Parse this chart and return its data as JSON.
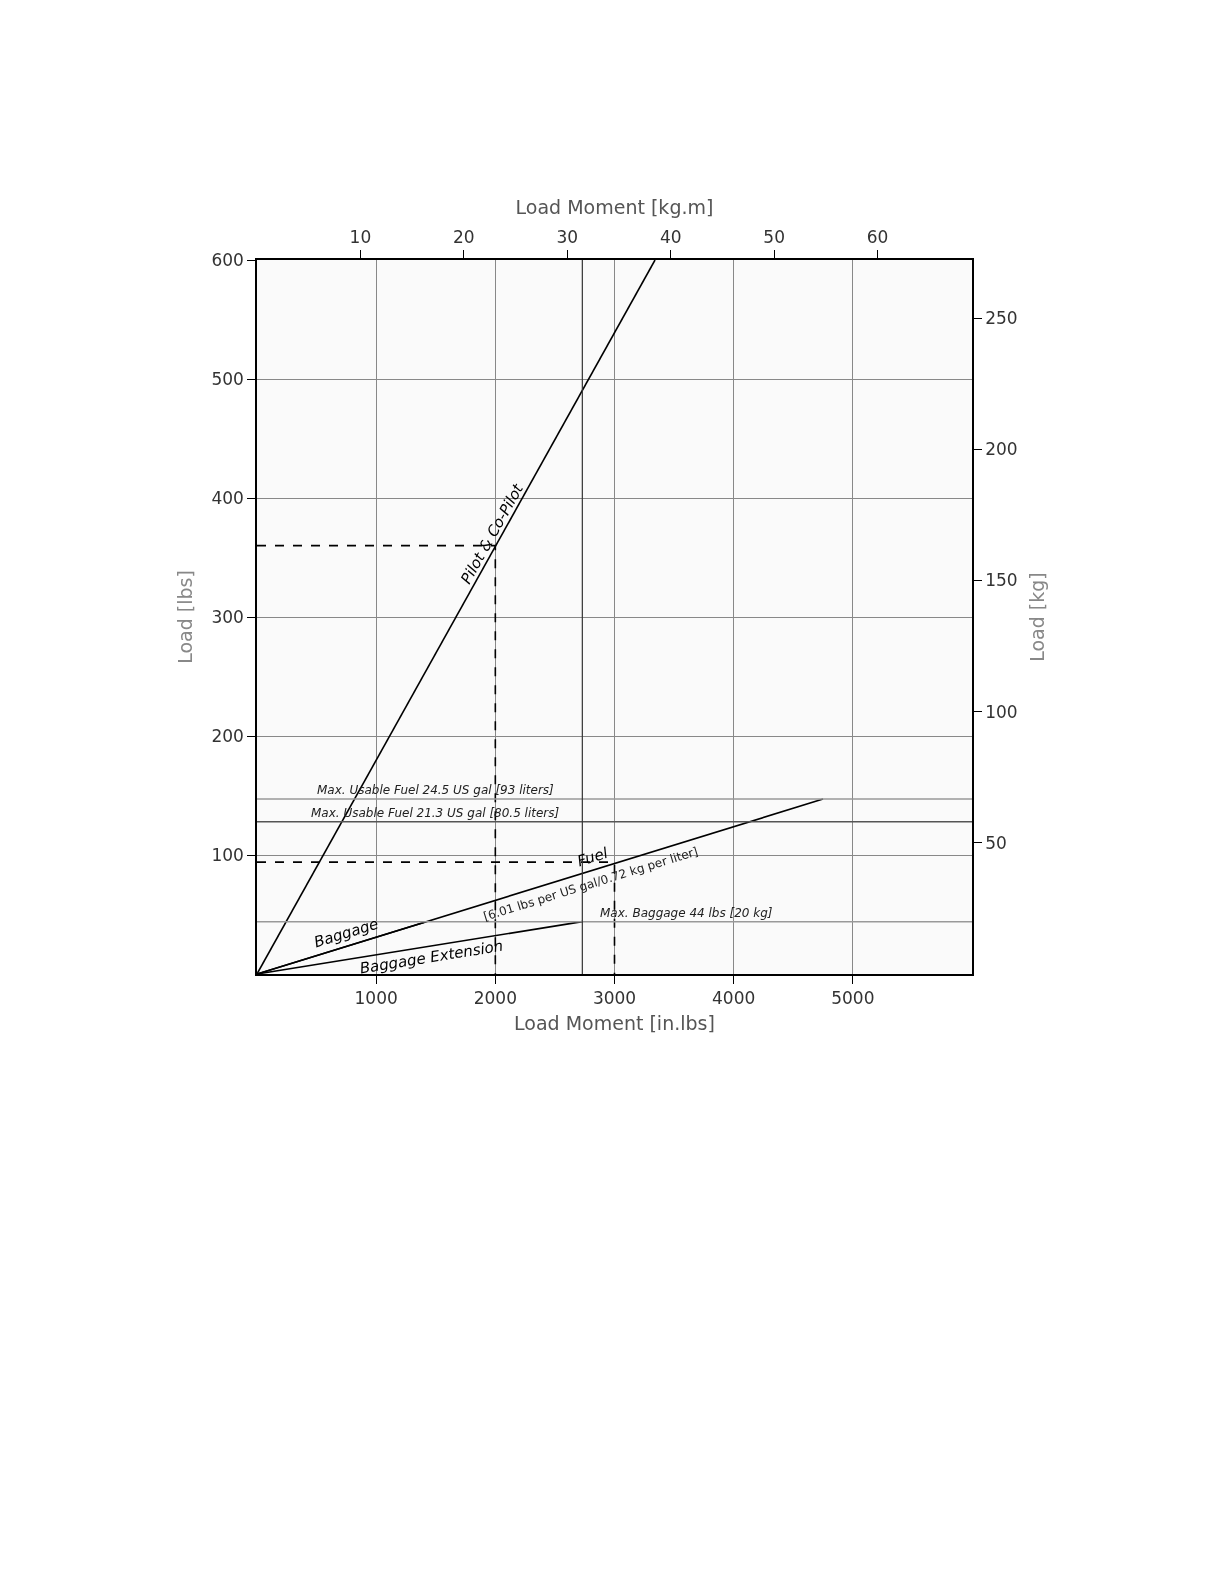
{
  "chart_data": {
    "type": "line",
    "xlabel": "Load Moment [in.lbs]",
    "ylabel": "Load [lbs]",
    "x2label": "Load Moment [kg.m]",
    "y2label": "Load [kg]",
    "xlim": [
      0,
      6000
    ],
    "xticks": [
      1000,
      2000,
      3000,
      4000,
      5000
    ],
    "ylim": [
      0,
      600
    ],
    "yticks": [
      100,
      200,
      300,
      400,
      500,
      600
    ],
    "x2lim": [
      0,
      69.13
    ],
    "x2ticks": [
      10,
      20,
      30,
      40,
      50,
      60
    ],
    "y2lim": [
      0,
      272.2
    ],
    "y2ticks": [
      50,
      100,
      150,
      200,
      250
    ],
    "grid": true,
    "legend": false,
    "marker": "none",
    "series": [
      {
        "name": "Pilot & Co-Pilot",
        "color": "#000000",
        "x": [
          0,
          3340
        ],
        "values": [
          0,
          600
        ],
        "line_style": "solid"
      },
      {
        "name": "Fuel",
        "color": "#000000",
        "x": [
          0,
          4750
        ],
        "values": [
          0,
          147
        ],
        "line_style": "solid"
      },
      {
        "name": "Baggage",
        "color": "#000000",
        "x": [
          0,
          1420
        ],
        "values": [
          0,
          44
        ],
        "line_style": "solid"
      },
      {
        "name": "Baggage Extension",
        "color": "#000000",
        "x": [
          0,
          2730
        ],
        "values": [
          0,
          44
        ],
        "line_style": "solid"
      },
      {
        "color": "#000000",
        "x": [
          0,
          2000,
          2000
        ],
        "values": [
          360,
          360,
          0
        ],
        "line_style": "dashed"
      },
      {
        "color": "#000000",
        "x": [
          0,
          3000,
          3000
        ],
        "values": [
          94,
          94,
          0
        ],
        "line_style": "dashed"
      }
    ],
    "ref_lines": [
      {
        "axis": "y",
        "value": 147,
        "label": "Max. Usable Fuel 24.5 US gal [93 liters]",
        "color": "#999999"
      },
      {
        "axis": "y",
        "value": 128,
        "label": "Max. Usable Fuel 21.3 US gal [80.5 liters]",
        "color": "#555555"
      },
      {
        "axis": "y",
        "value": 44,
        "label": "Max. Baggage 44 lbs [20 kg]",
        "color": "#999999"
      },
      {
        "axis": "x",
        "value": 2730,
        "color": "#333333"
      }
    ],
    "annotations": [
      {
        "text": "[6.01 lbs per US gal/0.72 kg per liter]",
        "x": 2800,
        "y": 87
      }
    ]
  }
}
